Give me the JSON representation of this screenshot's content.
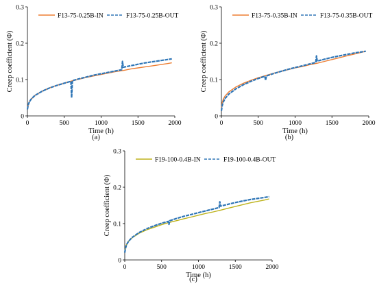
{
  "chart_data": [
    {
      "type": "line",
      "panel_label": "(a)",
      "title": "",
      "xlabel": "Time (h)",
      "ylabel": "Creep coefficient  (Φ)",
      "xlim": [
        0,
        2000
      ],
      "ylim": [
        0,
        0.3
      ],
      "xticks": [
        "0",
        "500",
        "1000",
        "1500",
        "2000"
      ],
      "yticks": [
        "0",
        "0.1",
        "0.2",
        "0.3"
      ],
      "grid": false,
      "legend": "top",
      "series": [
        {
          "name": "F13-75-0.25B-IN",
          "color": "#ED7D31",
          "dash": "solid",
          "x": [
            0,
            10,
            25,
            50,
            100,
            200,
            300,
            400,
            500,
            600,
            700,
            800,
            900,
            1000,
            1100,
            1200,
            1300,
            1400,
            1500,
            1600,
            1700,
            1800,
            1900,
            1960
          ],
          "y": [
            0.018,
            0.03,
            0.038,
            0.046,
            0.056,
            0.068,
            0.077,
            0.084,
            0.09,
            0.096,
            0.101,
            0.106,
            0.11,
            0.114,
            0.118,
            0.122,
            0.125,
            0.129,
            0.132,
            0.135,
            0.138,
            0.141,
            0.144,
            0.146
          ]
        },
        {
          "name": "F13-75-0.25B-OUT",
          "color": "#2E75B6",
          "dash": "dashed",
          "x": [
            0,
            10,
            25,
            50,
            100,
            200,
            300,
            400,
            500,
            590,
            600,
            610,
            700,
            800,
            900,
            1000,
            1100,
            1200,
            1280,
            1290,
            1300,
            1400,
            1500,
            1600,
            1700,
            1800,
            1900,
            1960
          ],
          "y": [
            0.018,
            0.03,
            0.038,
            0.046,
            0.056,
            0.068,
            0.077,
            0.084,
            0.09,
            0.095,
            0.05,
            0.097,
            0.102,
            0.107,
            0.112,
            0.116,
            0.12,
            0.124,
            0.127,
            0.15,
            0.134,
            0.138,
            0.142,
            0.146,
            0.149,
            0.152,
            0.155,
            0.157
          ]
        }
      ]
    },
    {
      "type": "line",
      "panel_label": "(b)",
      "title": "",
      "xlabel": "Time (h)",
      "ylabel": "Creep coefficient  (Φ)",
      "xlim": [
        0,
        2000
      ],
      "ylim": [
        0,
        0.3
      ],
      "xticks": [
        "0",
        "500",
        "1000",
        "1500",
        "2000"
      ],
      "yticks": [
        "0",
        "0.1",
        "0.2",
        "0.3"
      ],
      "grid": false,
      "legend": "top",
      "series": [
        {
          "name": "F13-75-0.35B-IN",
          "color": "#ED7D31",
          "dash": "solid",
          "x": [
            0,
            10,
            25,
            50,
            100,
            200,
            300,
            400,
            500,
            600,
            700,
            800,
            900,
            1000,
            1100,
            1200,
            1300,
            1400,
            1500,
            1600,
            1700,
            1800,
            1900,
            1960
          ],
          "y": [
            0.02,
            0.036,
            0.046,
            0.055,
            0.066,
            0.08,
            0.09,
            0.098,
            0.105,
            0.111,
            0.117,
            0.122,
            0.127,
            0.132,
            0.136,
            0.141,
            0.145,
            0.15,
            0.155,
            0.16,
            0.165,
            0.17,
            0.175,
            0.178
          ]
        },
        {
          "name": "F13-75-0.35B-OUT",
          "color": "#2E75B6",
          "dash": "dashed",
          "x": [
            0,
            10,
            25,
            50,
            100,
            200,
            300,
            400,
            500,
            590,
            600,
            610,
            700,
            800,
            900,
            1000,
            1100,
            1200,
            1280,
            1290,
            1300,
            1400,
            1500,
            1600,
            1700,
            1800,
            1900,
            1960
          ],
          "y": [
            0.014,
            0.028,
            0.038,
            0.048,
            0.06,
            0.075,
            0.086,
            0.095,
            0.103,
            0.109,
            0.098,
            0.11,
            0.116,
            0.122,
            0.128,
            0.133,
            0.138,
            0.143,
            0.147,
            0.165,
            0.151,
            0.156,
            0.161,
            0.165,
            0.169,
            0.173,
            0.176,
            0.178
          ]
        }
      ]
    },
    {
      "type": "line",
      "panel_label": "(c)",
      "title": "",
      "xlabel": "Time (h)",
      "ylabel": "Creep coefficient  (Φ)",
      "xlim": [
        0,
        2000
      ],
      "ylim": [
        0,
        0.3
      ],
      "xticks": [
        "0",
        "500",
        "1000",
        "1500",
        "2000"
      ],
      "yticks": [
        "0",
        "0.1",
        "0.2",
        "0.3"
      ],
      "grid": false,
      "legend": "top",
      "series": [
        {
          "name": "F19-100-0.4B-IN",
          "color": "#BDB21A",
          "dash": "solid",
          "x": [
            0,
            10,
            25,
            50,
            100,
            200,
            300,
            400,
            500,
            600,
            700,
            800,
            900,
            1000,
            1100,
            1200,
            1300,
            1400,
            1500,
            1600,
            1700,
            1800,
            1900,
            1960
          ],
          "y": [
            0.022,
            0.034,
            0.043,
            0.051,
            0.061,
            0.074,
            0.083,
            0.09,
            0.097,
            0.103,
            0.108,
            0.113,
            0.118,
            0.123,
            0.128,
            0.132,
            0.137,
            0.142,
            0.147,
            0.152,
            0.157,
            0.161,
            0.165,
            0.168
          ]
        },
        {
          "name": "F19-100-0.4B-OUT",
          "color": "#2E75B6",
          "dash": "dashed",
          "x": [
            0,
            10,
            25,
            50,
            100,
            200,
            300,
            400,
            500,
            590,
            600,
            610,
            700,
            800,
            900,
            1000,
            1100,
            1200,
            1280,
            1290,
            1300,
            1400,
            1500,
            1600,
            1700,
            1800,
            1900,
            1960
          ],
          "y": [
            0.02,
            0.032,
            0.042,
            0.051,
            0.062,
            0.076,
            0.086,
            0.094,
            0.101,
            0.106,
            0.098,
            0.108,
            0.114,
            0.12,
            0.125,
            0.13,
            0.135,
            0.14,
            0.144,
            0.16,
            0.148,
            0.153,
            0.158,
            0.162,
            0.166,
            0.169,
            0.172,
            0.174
          ]
        }
      ]
    }
  ]
}
